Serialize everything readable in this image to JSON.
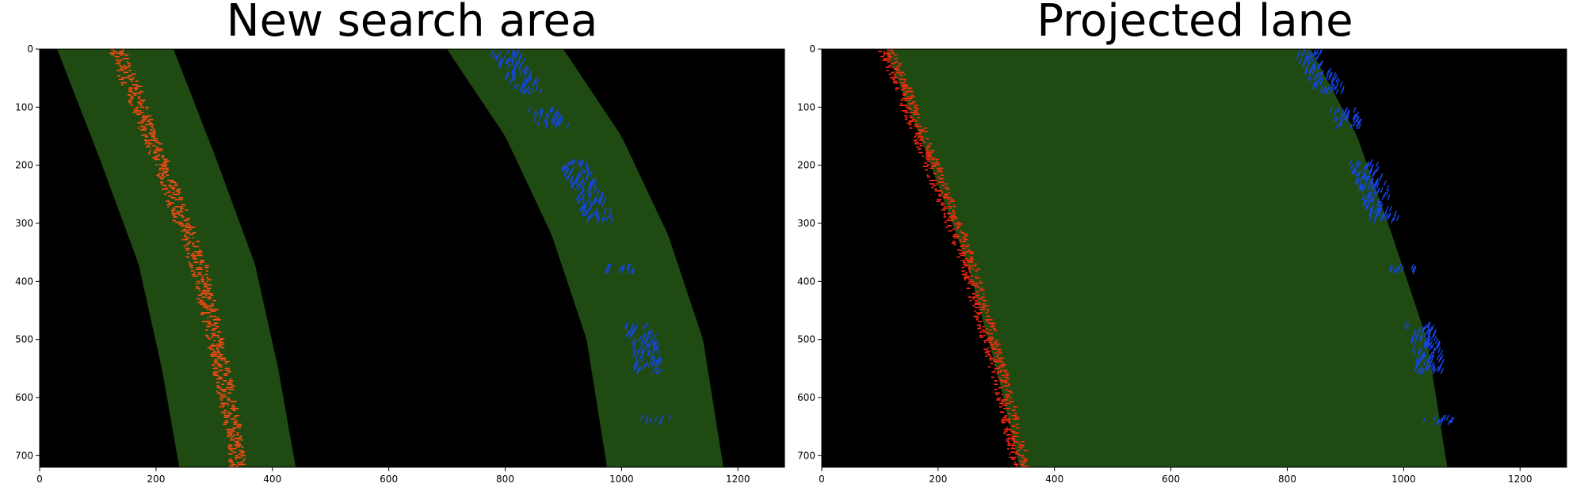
{
  "chart_data": [
    {
      "type": "image",
      "title": "New search area",
      "xlim": [
        0,
        1280
      ],
      "ylim": [
        720,
        0
      ],
      "xticks": [
        0,
        200,
        400,
        600,
        800,
        1000,
        1200
      ],
      "yticks": [
        0,
        100,
        200,
        300,
        400,
        500,
        600,
        700
      ],
      "overlay": "search-margin",
      "left_lane_fit": [
        [
          130,
          0
        ],
        [
          200,
          180
        ],
        [
          270,
          370
        ],
        [
          310,
          550
        ],
        [
          340,
          720
        ]
      ],
      "right_lane_fit": [
        [
          800,
          0
        ],
        [
          900,
          150
        ],
        [
          980,
          320
        ],
        [
          1040,
          500
        ],
        [
          1075,
          720
        ]
      ],
      "margin": 100,
      "colors": {
        "background": "#000000",
        "fill": "#1f4a12",
        "left_pixels": "#ff4a14",
        "right_pixels": "#1546e6"
      }
    },
    {
      "type": "image",
      "title": "Projected lane",
      "xlim": [
        0,
        1280
      ],
      "ylim": [
        720,
        0
      ],
      "xticks": [
        0,
        200,
        400,
        600,
        800,
        1000,
        1200
      ],
      "yticks": [
        0,
        100,
        200,
        300,
        400,
        500,
        600,
        700
      ],
      "overlay": "lane-area",
      "left_lane_fit": [
        [
          110,
          0
        ],
        [
          180,
          180
        ],
        [
          250,
          370
        ],
        [
          300,
          550
        ],
        [
          340,
          720
        ]
      ],
      "right_lane_fit": [
        [
          840,
          0
        ],
        [
          920,
          150
        ],
        [
          980,
          320
        ],
        [
          1040,
          500
        ],
        [
          1075,
          720
        ]
      ],
      "colors": {
        "background": "#000000",
        "fill": "#1f4a12",
        "left_pixels": "#ff2a10",
        "right_pixels": "#1546e6"
      }
    }
  ]
}
